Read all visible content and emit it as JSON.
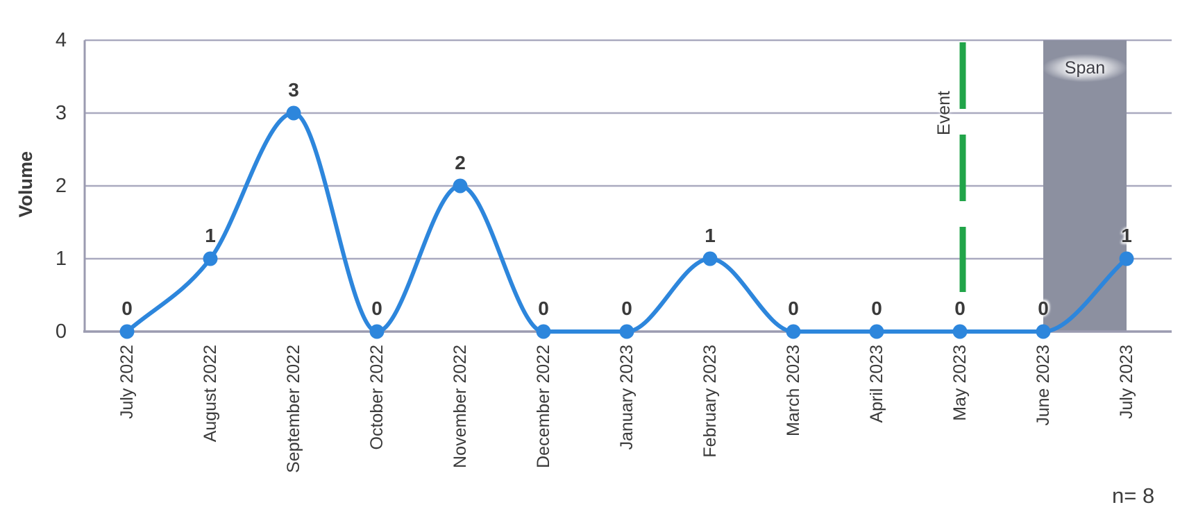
{
  "chart_data": {
    "type": "line",
    "title": "",
    "xlabel": "",
    "ylabel": "Volume",
    "categories": [
      "July 2022",
      "August 2022",
      "September 2022",
      "October 2022",
      "November 2022",
      "December 2022",
      "January 2023",
      "February 2023",
      "March 2023",
      "April 2023",
      "May 2023",
      "June 2023",
      "July 2023"
    ],
    "values": [
      0,
      1,
      3,
      0,
      2,
      0,
      0,
      1,
      0,
      0,
      0,
      0,
      1
    ],
    "data_labels": [
      0,
      1,
      3,
      0,
      2,
      0,
      0,
      1,
      0,
      0,
      0,
      0,
      1
    ],
    "ylim": [
      0,
      4
    ],
    "yticks": [
      0,
      1,
      2,
      3,
      4
    ],
    "grid": true,
    "legend_position": "none",
    "line_style": "smooth",
    "marker": "circle",
    "annotations": {
      "event_line": {
        "label": "Event",
        "category": "May 2023",
        "style": "dashed"
      },
      "span_band": {
        "label": "Span",
        "from": "June 2023",
        "to": "July 2023"
      }
    },
    "note": "n= 8",
    "colors": {
      "series": "#2d86dc",
      "event_line": "#21a449",
      "span_band": "#8c90a0",
      "grid": "#a9a9bf",
      "axis": "#9b9bb0",
      "text": "#3a3a3a"
    }
  }
}
